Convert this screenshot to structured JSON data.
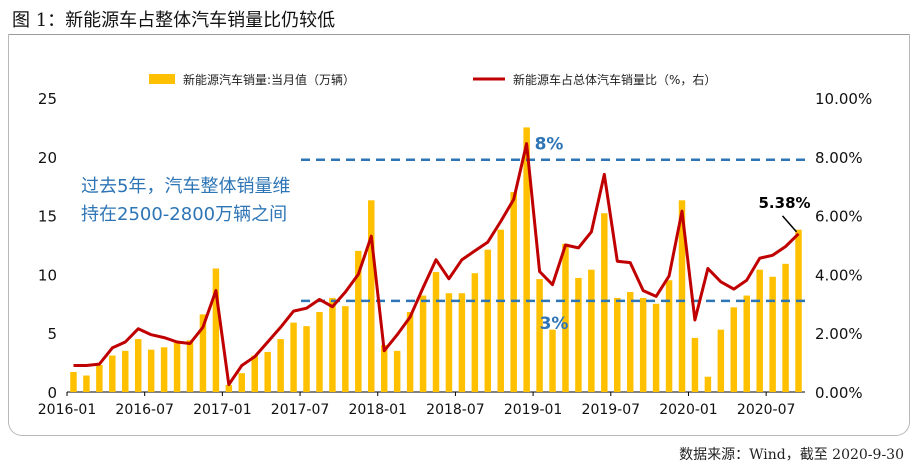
{
  "figure_title": "图 1：新能源车占整体汽车销量比仍较低",
  "source_note": "数据来源：Wind，截至 2020-9-30",
  "chart_data": {
    "type": "bar+line",
    "legend": {
      "placement": "top-center",
      "bar_label": "新能源汽车销量:当月值（万辆）",
      "line_label": "新能源车占总体汽车销量比（%，右）"
    },
    "x_ticks": [
      "2016-01",
      "2016-07",
      "2017-01",
      "2017-07",
      "2018-01",
      "2018-07",
      "2019-01",
      "2019-07",
      "2020-01",
      "2020-07"
    ],
    "left_axis": {
      "ylim": [
        0,
        25
      ],
      "ticks": [
        "0",
        "5",
        "10",
        "15",
        "20",
        "25"
      ]
    },
    "right_axis": {
      "ylim": [
        0,
        10
      ],
      "ticks": [
        "0.00%",
        "2.00%",
        "4.00%",
        "6.00%",
        "8.00%",
        "10.00%"
      ]
    },
    "categories": [
      "2016-01",
      "2016-02",
      "2016-03",
      "2016-04",
      "2016-05",
      "2016-06",
      "2016-07",
      "2016-08",
      "2016-09",
      "2016-10",
      "2016-11",
      "2016-12",
      "2017-01",
      "2017-02",
      "2017-03",
      "2017-04",
      "2017-05",
      "2017-06",
      "2017-07",
      "2017-08",
      "2017-09",
      "2017-10",
      "2017-11",
      "2017-12",
      "2018-01",
      "2018-02",
      "2018-03",
      "2018-04",
      "2018-05",
      "2018-06",
      "2018-07",
      "2018-08",
      "2018-09",
      "2018-10",
      "2018-11",
      "2018-12",
      "2019-01",
      "2019-02",
      "2019-03",
      "2019-04",
      "2019-05",
      "2019-06",
      "2019-07",
      "2019-08",
      "2019-09",
      "2019-10",
      "2019-11",
      "2019-12",
      "2020-01",
      "2020-02",
      "2020-03",
      "2020-04",
      "2020-05",
      "2020-06",
      "2020-07",
      "2020-08",
      "2020-09"
    ],
    "series": [
      {
        "name": "新能源汽车销量:当月值（万辆）",
        "axis": "left",
        "color": "#FFC000",
        "values": [
          1.7,
          1.4,
          2.3,
          3.1,
          3.5,
          4.5,
          3.6,
          3.8,
          4.2,
          4.4,
          6.6,
          10.5,
          0.6,
          1.6,
          3.1,
          3.4,
          4.5,
          5.9,
          5.6,
          6.8,
          8.0,
          7.3,
          12.0,
          16.3,
          4.0,
          3.5,
          6.8,
          8.2,
          10.2,
          8.4,
          8.4,
          10.1,
          12.1,
          13.8,
          17.0,
          22.5,
          9.6,
          5.3,
          12.6,
          9.7,
          10.4,
          15.2,
          8.0,
          8.5,
          8.0,
          7.5,
          9.5,
          16.3,
          4.6,
          1.3,
          5.3,
          7.2,
          8.2,
          10.4,
          9.8,
          10.9,
          13.8
        ]
      },
      {
        "name": "新能源车占总体汽车销量比（%，右）",
        "axis": "right",
        "color": "#C00000",
        "values": [
          0.9,
          0.9,
          0.95,
          1.5,
          1.7,
          2.15,
          1.95,
          1.85,
          1.7,
          1.65,
          2.2,
          3.45,
          0.25,
          0.9,
          1.2,
          1.7,
          2.2,
          2.75,
          2.85,
          3.15,
          2.9,
          3.4,
          4.0,
          5.3,
          1.4,
          1.95,
          2.55,
          3.55,
          4.5,
          3.85,
          4.5,
          4.8,
          5.1,
          5.8,
          6.55,
          8.45,
          4.1,
          3.65,
          5.0,
          4.9,
          5.45,
          7.4,
          4.45,
          4.4,
          3.45,
          3.25,
          3.95,
          6.15,
          2.45,
          4.2,
          3.75,
          3.5,
          3.8,
          4.55,
          4.65,
          4.95,
          5.38
        ]
      }
    ],
    "reference_lines": [
      {
        "label": "8%",
        "axis": "right",
        "value": 7.9
      },
      {
        "label": "3%",
        "axis": "right",
        "value": 3.1
      }
    ],
    "annotations": {
      "left_note_lines": [
        "过去5年，汽车整体销量维",
        "持在2500-2800万辆之间"
      ],
      "last_point_label": "5.38%"
    }
  }
}
